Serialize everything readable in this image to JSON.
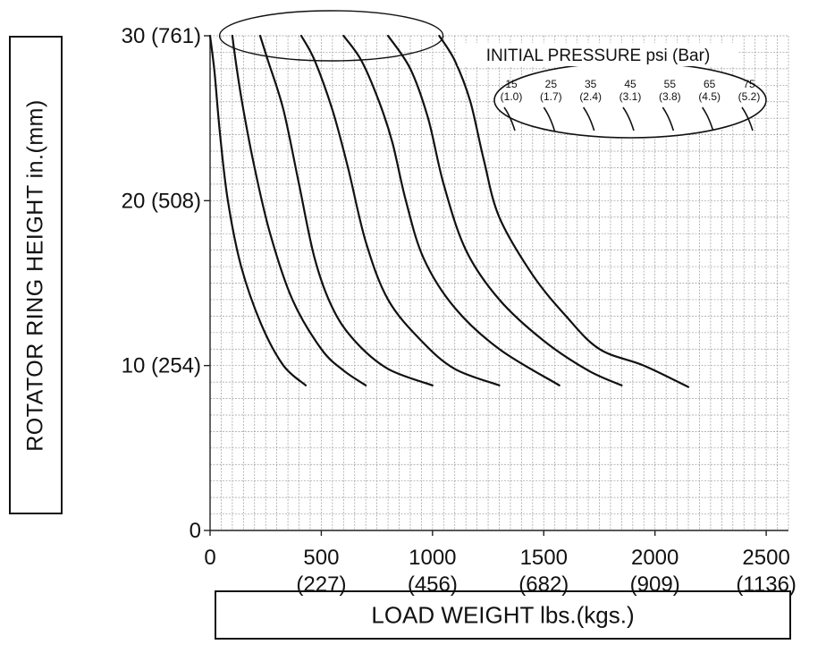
{
  "chart_data": {
    "type": "line",
    "xlabel": "LOAD WEIGHT lbs.(kgs.)",
    "ylabel": "ROTATOR RING HEIGHT in.(mm)",
    "xlim": [
      0,
      2600
    ],
    "ylim": [
      0,
      30
    ],
    "grid": true,
    "x_ticks": [
      {
        "value": 0,
        "label": "0",
        "sublabel": ""
      },
      {
        "value": 500,
        "label": "500",
        "sublabel": "(227)"
      },
      {
        "value": 1000,
        "label": "1000",
        "sublabel": "(456)"
      },
      {
        "value": 1500,
        "label": "1500",
        "sublabel": "(682)"
      },
      {
        "value": 2000,
        "label": "2000",
        "sublabel": "(909)"
      },
      {
        "value": 2500,
        "label": "2500",
        "sublabel": "(1136)"
      }
    ],
    "y_ticks": [
      {
        "value": 0,
        "label": "0"
      },
      {
        "value": 10,
        "label": "10 (254)"
      },
      {
        "value": 20,
        "label": "20 (508)"
      },
      {
        "value": 30,
        "label": "30 (761)"
      }
    ],
    "legend": {
      "title": "INITIAL PRESSURE psi (Bar)",
      "placement": "top-right",
      "entries": [
        {
          "psi": "15",
          "bar": "(1.0)"
        },
        {
          "psi": "25",
          "bar": "(1.7)"
        },
        {
          "psi": "35",
          "bar": "(2.4)"
        },
        {
          "psi": "45",
          "bar": "(3.1)"
        },
        {
          "psi": "55",
          "bar": "(3.8)"
        },
        {
          "psi": "65",
          "bar": "(4.5)"
        },
        {
          "psi": "75",
          "bar": "(5.2)"
        }
      ]
    },
    "series": [
      {
        "points": [
          [
            0,
            30
          ],
          [
            20,
            27.8
          ],
          [
            45,
            24
          ],
          [
            80,
            20
          ],
          [
            140,
            16
          ],
          [
            230,
            12.5
          ],
          [
            330,
            10
          ],
          [
            430,
            8.8
          ]
        ]
      },
      {
        "points": [
          [
            100,
            30
          ],
          [
            120,
            28
          ],
          [
            150,
            25.5
          ],
          [
            200,
            22
          ],
          [
            270,
            18
          ],
          [
            370,
            14
          ],
          [
            500,
            11
          ],
          [
            600,
            9.7
          ],
          [
            700,
            8.8
          ]
        ]
      },
      {
        "points": [
          [
            225,
            30
          ],
          [
            260,
            28.5
          ],
          [
            330,
            25.5
          ],
          [
            400,
            21
          ],
          [
            470,
            16.5
          ],
          [
            550,
            13.5
          ],
          [
            650,
            11.5
          ],
          [
            800,
            9.8
          ],
          [
            1000,
            8.8
          ]
        ]
      },
      {
        "points": [
          [
            410,
            30
          ],
          [
            470,
            28.5
          ],
          [
            550,
            25.5
          ],
          [
            620,
            22
          ],
          [
            700,
            17.5
          ],
          [
            800,
            14
          ],
          [
            950,
            11.5
          ],
          [
            1100,
            9.8
          ],
          [
            1300,
            8.8
          ]
        ]
      },
      {
        "points": [
          [
            600,
            30
          ],
          [
            680,
            28.5
          ],
          [
            760,
            26
          ],
          [
            820,
            23.5
          ],
          [
            880,
            20
          ],
          [
            960,
            16.5
          ],
          [
            1100,
            13.5
          ],
          [
            1300,
            11
          ],
          [
            1570,
            8.8
          ]
        ]
      },
      {
        "points": [
          [
            800,
            30
          ],
          [
            900,
            28
          ],
          [
            980,
            25
          ],
          [
            1050,
            21
          ],
          [
            1150,
            17
          ],
          [
            1300,
            14
          ],
          [
            1500,
            11.5
          ],
          [
            1700,
            9.7
          ],
          [
            1850,
            8.8
          ]
        ]
      },
      {
        "points": [
          [
            1030,
            30
          ],
          [
            1100,
            28.5
          ],
          [
            1170,
            26
          ],
          [
            1230,
            22.5
          ],
          [
            1300,
            19
          ],
          [
            1450,
            15.5
          ],
          [
            1600,
            13
          ],
          [
            1750,
            11
          ],
          [
            1950,
            10
          ],
          [
            2150,
            8.7
          ]
        ]
      }
    ]
  }
}
